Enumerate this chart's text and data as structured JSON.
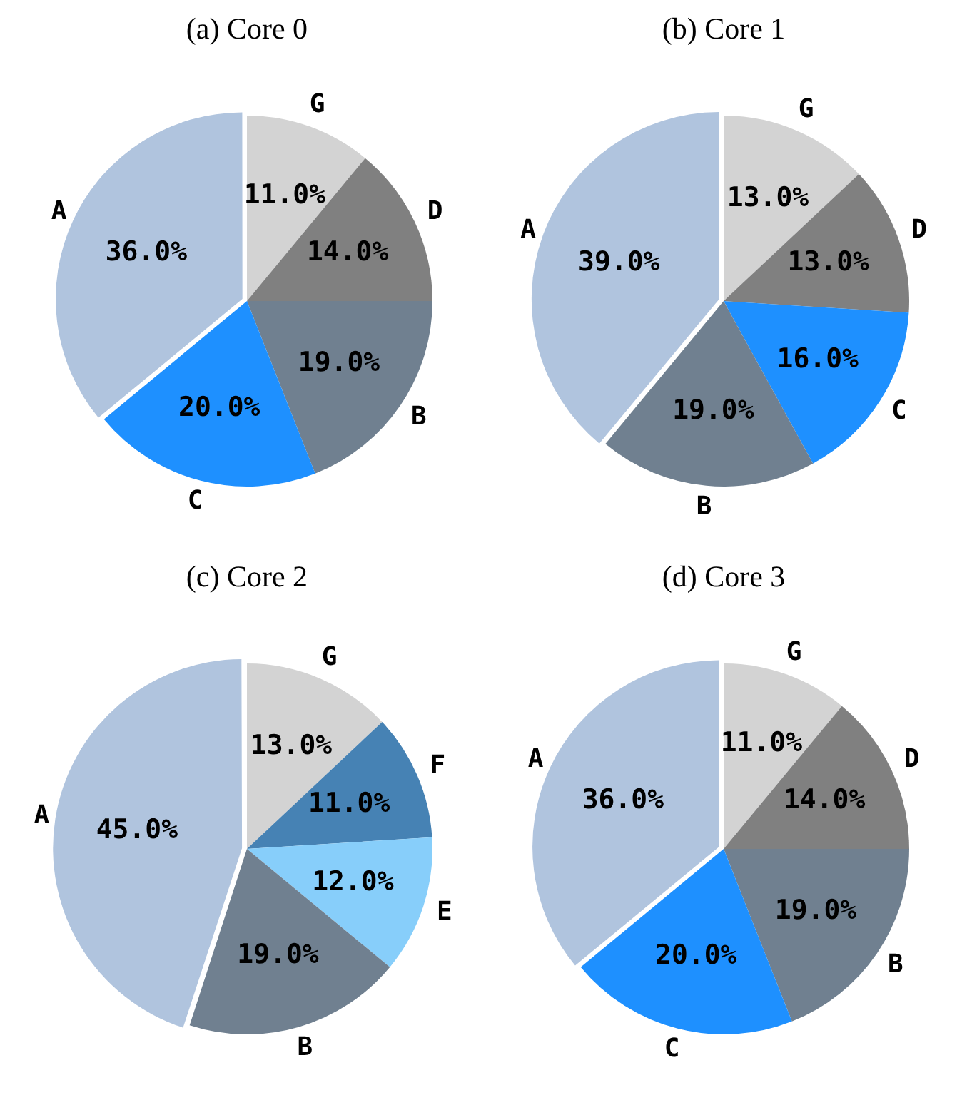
{
  "chart_data": [
    {
      "type": "pie",
      "title": "(a) Core 0",
      "categories": [
        "G",
        "D",
        "B",
        "C",
        "A"
      ],
      "values": [
        11,
        14,
        19,
        20,
        36
      ],
      "colors": [
        "#d3d3d3",
        "#808080",
        "#708090",
        "#1e90ff",
        "#b0c4de"
      ],
      "value_labels": [
        "11.0%",
        "14.0%",
        "19.0%",
        "20.0%",
        "36.0%"
      ],
      "legend": false
    },
    {
      "type": "pie",
      "title": "(b) Core 1",
      "categories": [
        "G",
        "D",
        "C",
        "B",
        "A"
      ],
      "values": [
        13,
        13,
        16,
        19,
        39
      ],
      "colors": [
        "#d3d3d3",
        "#808080",
        "#1e90ff",
        "#708090",
        "#b0c4de"
      ],
      "value_labels": [
        "13.0%",
        "13.0%",
        "16.0%",
        "19.0%",
        "39.0%"
      ],
      "legend": false
    },
    {
      "type": "pie",
      "title": "(c) Core 2",
      "categories": [
        "G",
        "F",
        "E",
        "B",
        "A"
      ],
      "values": [
        13,
        11,
        12,
        19,
        45
      ],
      "colors": [
        "#d3d3d3",
        "#4682b4",
        "#87cefa",
        "#708090",
        "#b0c4de"
      ],
      "value_labels": [
        "13.0%",
        "11.0%",
        "12.0%",
        "19.0%",
        "45.0%"
      ],
      "legend": false
    },
    {
      "type": "pie",
      "title": "(d) Core 3",
      "categories": [
        "G",
        "D",
        "B",
        "C",
        "A"
      ],
      "values": [
        11,
        14,
        19,
        20,
        36
      ],
      "colors": [
        "#d3d3d3",
        "#808080",
        "#708090",
        "#1e90ff",
        "#b0c4de"
      ],
      "value_labels": [
        "11.0%",
        "14.0%",
        "19.0%",
        "20.0%",
        "36.0%"
      ],
      "legend": false
    }
  ]
}
